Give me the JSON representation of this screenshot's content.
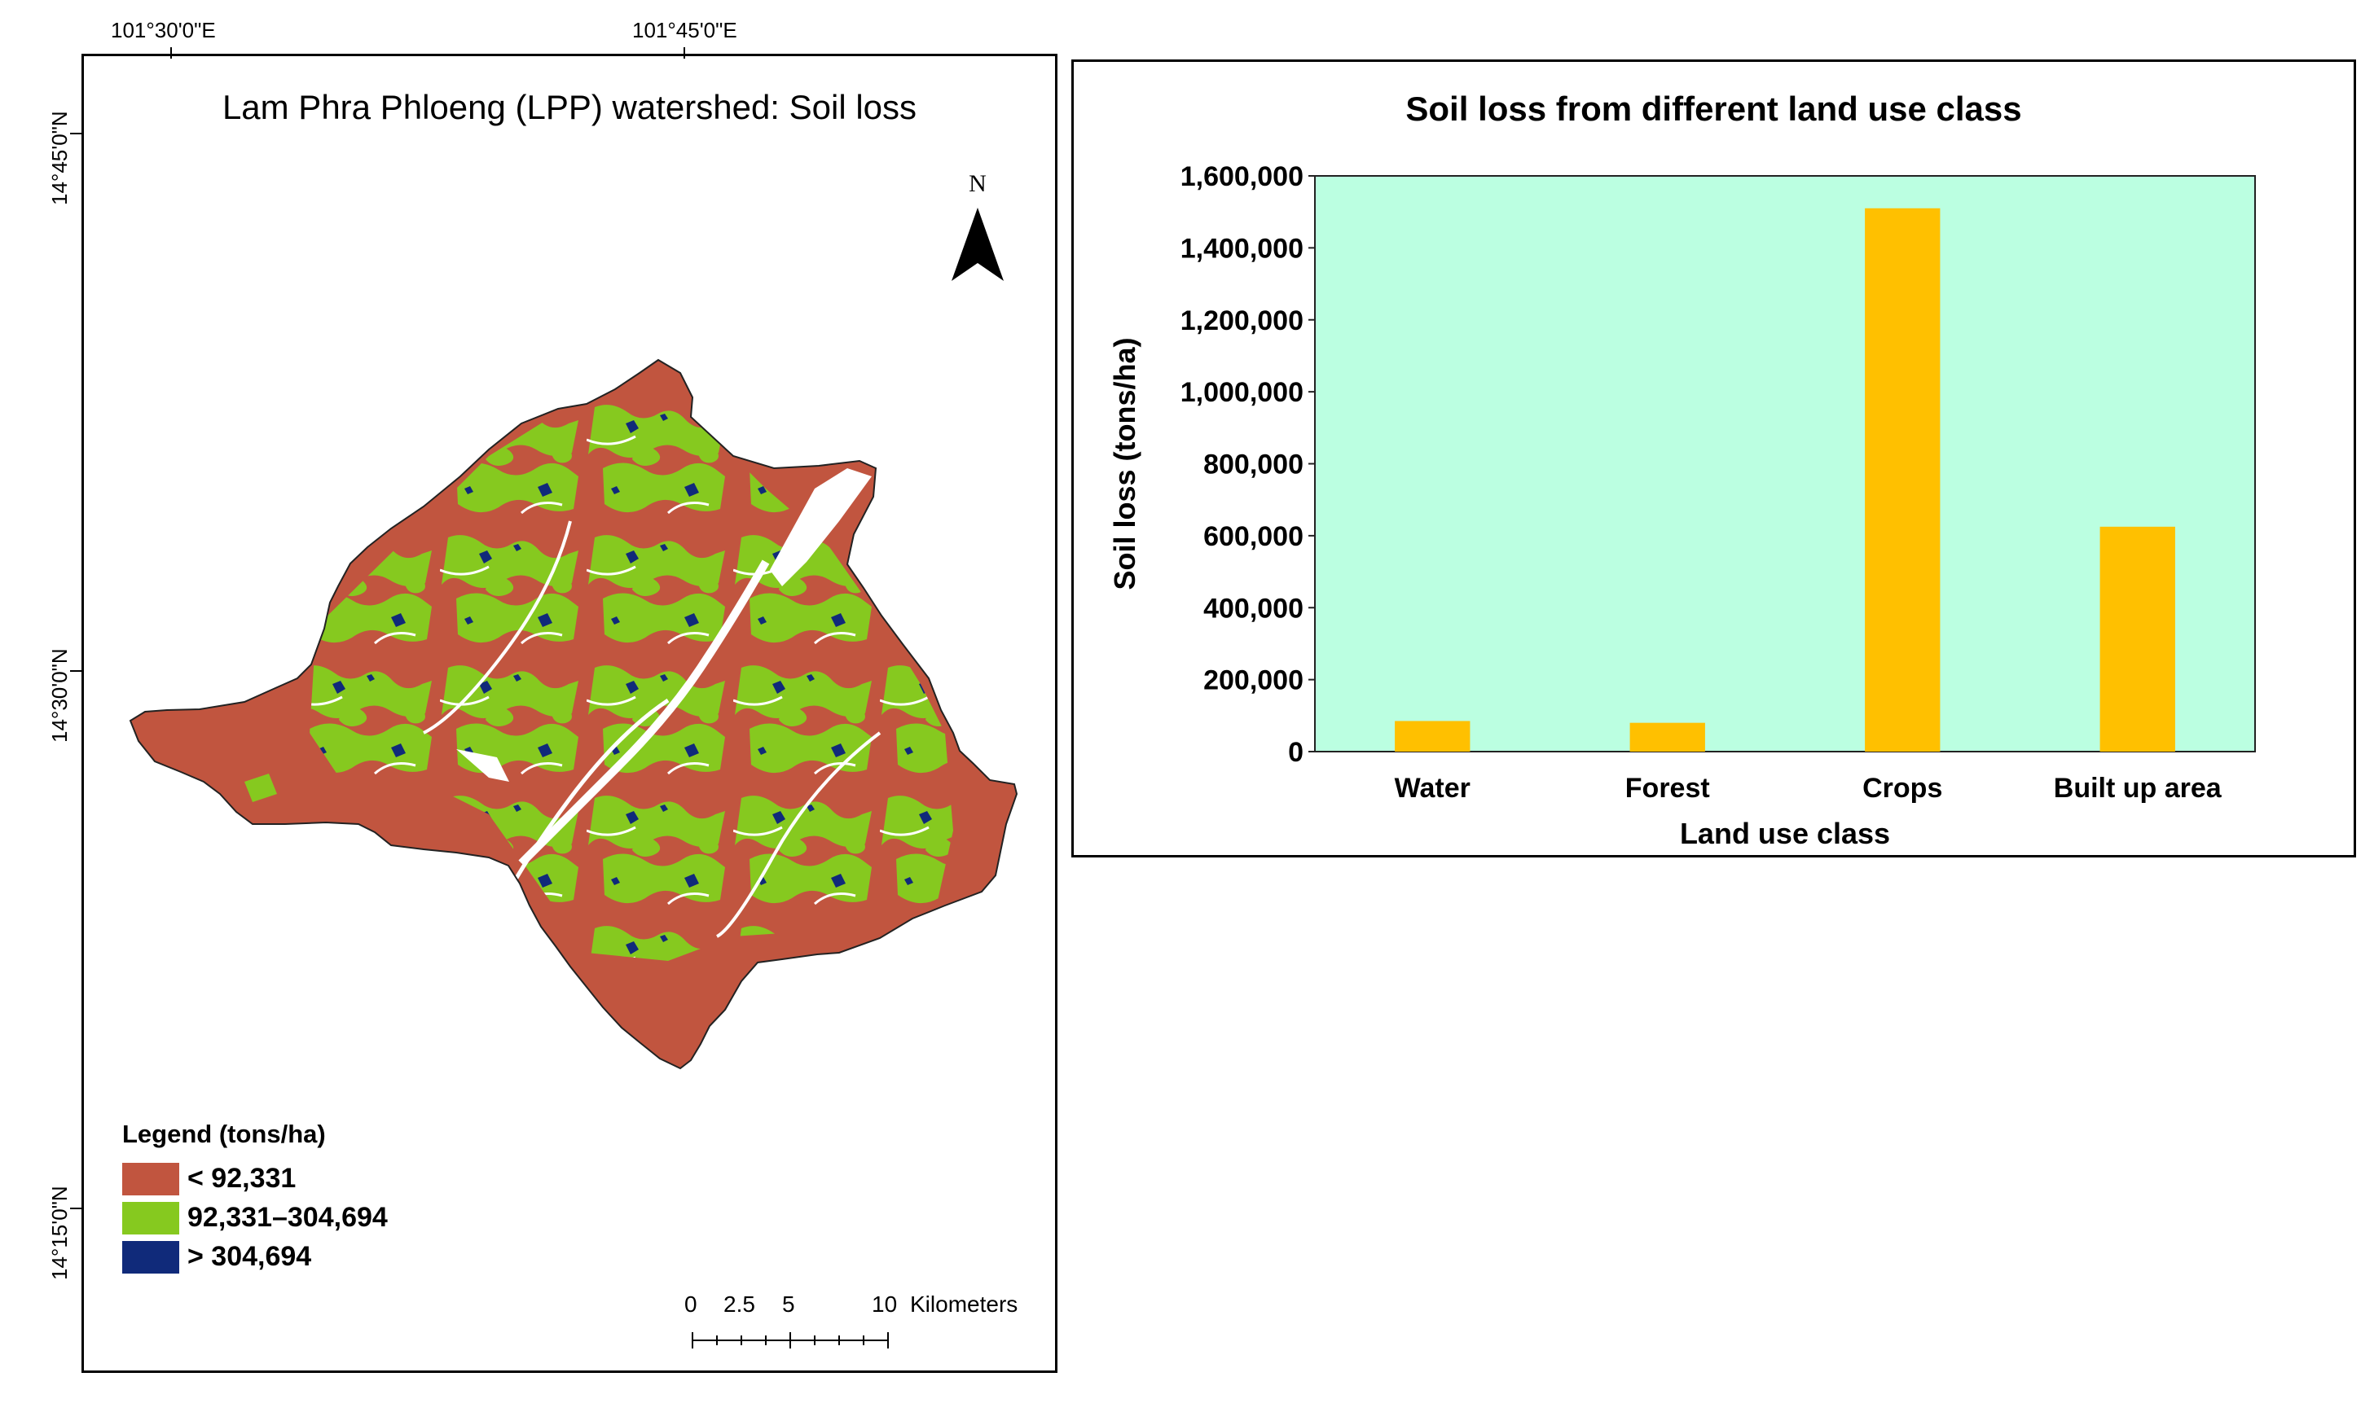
{
  "map": {
    "title": "Lam Phra Phloeng (LPP) watershed: Soil loss",
    "north_label": "N",
    "longitude_labels": [
      "101°30'0\"E",
      "101°45'0\"E"
    ],
    "latitude_labels": [
      "14°45'0\"N",
      "14°30'0\"N",
      "14°15'0\"N"
    ],
    "legend": {
      "title": "Legend (tons/ha)",
      "items": [
        {
          "label": "< 92,331",
          "color": "#c1553f"
        },
        {
          "label": "92,331–304,694",
          "color": "#86c91f"
        },
        {
          "label": "> 304,694",
          "color": "#102a7a"
        }
      ]
    },
    "scale": {
      "ticks": [
        "0",
        "2.5",
        "5",
        "10"
      ],
      "unit": "Kilometers"
    }
  },
  "chart_data": {
    "type": "bar",
    "title": "Soil loss from different land use class",
    "xlabel": "Land use class",
    "ylabel": "Soil loss (tons/ha)",
    "categories": [
      "Water",
      "Forest",
      "Crops",
      "Built up area"
    ],
    "values": [
      85000,
      80000,
      1510000,
      625000
    ],
    "ylim": [
      0,
      1600000
    ],
    "yticks": [
      "0",
      "200,000",
      "400,000",
      "600,000",
      "800,000",
      "1,000,000",
      "1,200,000",
      "1,400,000",
      "1,600,000"
    ],
    "colors": {
      "plot_bg": "#bbffe1",
      "bar": "#ffc000"
    },
    "grid": false,
    "legend": "none"
  }
}
